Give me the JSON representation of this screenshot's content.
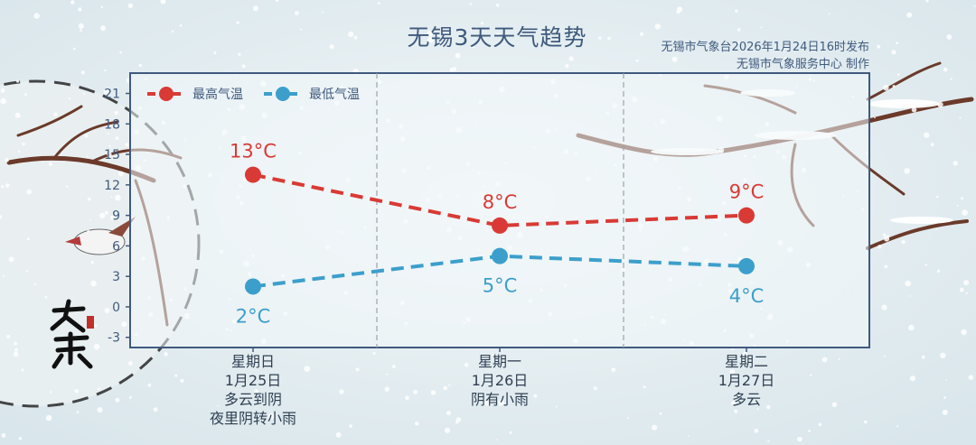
{
  "header": {
    "title": "无锡3天天气趋势",
    "issuer_line1": "无锡市气象台2026年1月24日16时发布",
    "issuer_line2": "无锡市气象服务中心  制作"
  },
  "decoration": {
    "seal_text": "大寒"
  },
  "colors": {
    "high": "#d93a35",
    "low": "#3c9fcb",
    "axis": "#3f5a7d",
    "text": "#3f5a7d"
  },
  "chart_data": {
    "type": "line",
    "title": "无锡3天天气趋势",
    "categories": [
      {
        "weekday": "星期日",
        "date": "1月25日",
        "weather1": "多云到阴",
        "weather2": "夜里阴转小雨"
      },
      {
        "weekday": "星期一",
        "date": "1月26日",
        "weather1": "阴有小雨",
        "weather2": ""
      },
      {
        "weekday": "星期二",
        "date": "1月27日",
        "weather1": "多云",
        "weather2": ""
      }
    ],
    "series": [
      {
        "name": "最高气温",
        "values": [
          13,
          8,
          9
        ],
        "labels": [
          "13°C",
          "8°C",
          "9°C"
        ],
        "color": "#d93a35"
      },
      {
        "name": "最低气温",
        "values": [
          2,
          5,
          4
        ],
        "labels": [
          "2°C",
          "5°C",
          "4°C"
        ],
        "color": "#3c9fcb"
      }
    ],
    "ylim": [
      -4,
      23
    ],
    "yticks": [
      -3,
      0,
      3,
      6,
      9,
      12,
      15,
      18,
      21
    ],
    "grid": "vertical dashed separators",
    "legend": "top-left"
  }
}
